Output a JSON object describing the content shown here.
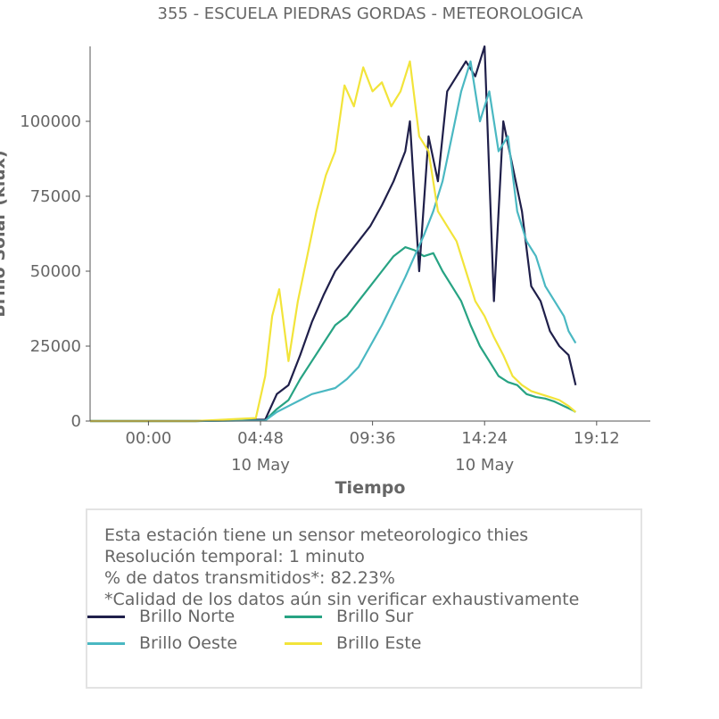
{
  "chart_data": {
    "type": "line",
    "title": "355 - ESCUELA PIEDRAS GORDAS - METEOROLOGICA",
    "xlabel": "Tiempo",
    "ylabel": "Brillo Solar (klux)",
    "x_unit": "hours on 9-10 May",
    "xlim": [
      21.5,
      45.5
    ],
    "ylim": [
      0,
      125000
    ],
    "x_ticks": [
      {
        "x": 24.0,
        "label": "00:00",
        "sub": ""
      },
      {
        "x": 28.8,
        "label": "04:48",
        "sub": "10 May"
      },
      {
        "x": 33.6,
        "label": "09:36",
        "sub": ""
      },
      {
        "x": 38.4,
        "label": "14:24",
        "sub": "10 May"
      },
      {
        "x": 43.2,
        "label": "19:12",
        "sub": ""
      }
    ],
    "y_ticks": [
      0,
      25000,
      50000,
      75000,
      100000
    ],
    "y_tick_labels": [
      "0",
      "25000",
      "50000",
      "75000",
      "100000"
    ],
    "grid": false,
    "series": [
      {
        "name": "Brillo Norte",
        "color": "#1f1f4a",
        "x": [
          21.5,
          26,
          29.0,
          29.5,
          30.0,
          30.5,
          31.0,
          31.5,
          32.0,
          32.5,
          33.0,
          33.5,
          34.0,
          34.5,
          35.0,
          35.2,
          35.6,
          36.0,
          36.4,
          36.8,
          37.2,
          37.6,
          38.0,
          38.4,
          38.8,
          39.2,
          39.6,
          40.0,
          40.4,
          40.8,
          41.2,
          41.6,
          42.0,
          42.3
        ],
        "y": [
          0,
          0,
          500,
          9000,
          12000,
          22000,
          33000,
          42000,
          50000,
          55000,
          60000,
          65000,
          72000,
          80000,
          90000,
          100000,
          50000,
          95000,
          80000,
          110000,
          115000,
          120000,
          115000,
          125000,
          40000,
          100000,
          85000,
          70000,
          45000,
          40000,
          30000,
          25000,
          22000,
          12000
        ]
      },
      {
        "name": "Brillo Sur",
        "color": "#27a383",
        "x": [
          21.5,
          26,
          29.0,
          29.5,
          30.0,
          30.5,
          31.0,
          31.5,
          32.0,
          32.5,
          33.0,
          33.5,
          34.0,
          34.5,
          35.0,
          35.4,
          35.8,
          36.2,
          36.6,
          37.0,
          37.4,
          37.8,
          38.2,
          38.6,
          39.0,
          39.4,
          39.8,
          40.2,
          40.6,
          41.0,
          41.4,
          41.8,
          42.2,
          42.3
        ],
        "y": [
          0,
          0,
          300,
          4000,
          7000,
          14000,
          20000,
          26000,
          32000,
          35000,
          40000,
          45000,
          50000,
          55000,
          58000,
          57000,
          55000,
          56000,
          50000,
          45000,
          40000,
          32000,
          25000,
          20000,
          15000,
          13000,
          12000,
          9000,
          8000,
          7500,
          6500,
          5000,
          3500,
          3000
        ]
      },
      {
        "name": "Brillo Oeste",
        "color": "#4ab8c2",
        "x": [
          21.5,
          26,
          29.0,
          29.5,
          30.0,
          30.5,
          31.0,
          31.5,
          32.0,
          32.5,
          33.0,
          33.5,
          34.0,
          34.5,
          35.0,
          35.4,
          35.8,
          36.2,
          36.6,
          37.0,
          37.4,
          37.8,
          38.2,
          38.6,
          39.0,
          39.4,
          39.8,
          40.2,
          40.6,
          41.0,
          41.4,
          41.8,
          42.0,
          42.3
        ],
        "y": [
          0,
          0,
          200,
          3000,
          5000,
          7000,
          9000,
          10000,
          11000,
          14000,
          18000,
          25000,
          32000,
          40000,
          48000,
          55000,
          62000,
          70000,
          80000,
          95000,
          110000,
          120000,
          100000,
          110000,
          90000,
          95000,
          70000,
          60000,
          55000,
          45000,
          40000,
          35000,
          30000,
          26000
        ]
      },
      {
        "name": "Brillo Este",
        "color": "#f2e43a",
        "x": [
          21.5,
          26,
          28.6,
          29.0,
          29.3,
          29.6,
          30.0,
          30.4,
          30.8,
          31.2,
          31.6,
          32.0,
          32.4,
          32.8,
          33.2,
          33.6,
          34.0,
          34.4,
          34.8,
          35.2,
          35.6,
          36.0,
          36.4,
          36.8,
          37.2,
          37.6,
          38.0,
          38.4,
          38.8,
          39.2,
          39.6,
          40.0,
          40.4,
          40.8,
          41.2,
          41.6,
          42.0,
          42.3
        ],
        "y": [
          0,
          0,
          1000,
          15000,
          35000,
          44000,
          20000,
          40000,
          55000,
          70000,
          82000,
          90000,
          112000,
          105000,
          118000,
          110000,
          113000,
          105000,
          110000,
          120000,
          95000,
          90000,
          70000,
          65000,
          60000,
          50000,
          40000,
          35000,
          28000,
          22000,
          15000,
          12000,
          10000,
          9000,
          8000,
          7000,
          5000,
          3000
        ]
      }
    ],
    "legend": [
      "Brillo Norte",
      "Brillo Sur",
      "Brillo Oeste",
      "Brillo Este"
    ],
    "legend_placement": "bottom"
  },
  "info": {
    "line1": "Esta estación tiene un sensor meteorologico thies",
    "line2": "Resolución temporal: 1 minuto",
    "line3": "% de datos transmitidos*: 82.23%",
    "line4": "*Calidad de los datos aún sin verificar exhaustivamente"
  },
  "legend_labels": {
    "norte": "Brillo Norte",
    "sur": "Brillo Sur",
    "oeste": "Brillo Oeste",
    "este": "Brillo Este"
  }
}
